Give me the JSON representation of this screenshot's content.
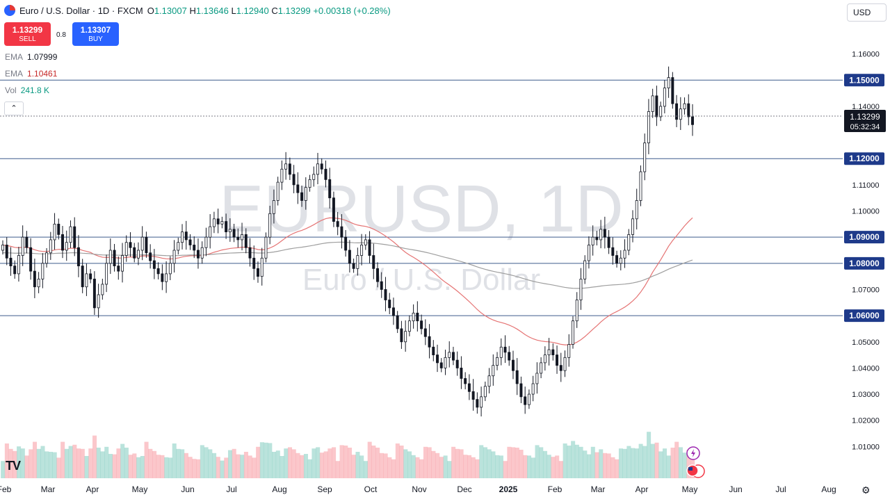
{
  "header": {
    "title": "Euro / U.S. Dollar · 1D · FXCM",
    "open_label": "O",
    "open": "1.13007",
    "high_label": "H",
    "high": "1.13646",
    "low_label": "L",
    "low": "1.12940",
    "close_label": "C",
    "close": "1.13299",
    "change": "+0.00318 (+0.28%)"
  },
  "trade": {
    "sell_price": "1.13299",
    "sell_label": "SELL",
    "spread": "0.8",
    "buy_price": "1.13307",
    "buy_label": "BUY"
  },
  "indicators": [
    {
      "name": "EMA",
      "value": "1.07999"
    },
    {
      "name": "EMA",
      "value": "1.10461"
    },
    {
      "name": "Vol",
      "value": "241.8 K"
    }
  ],
  "collapse_glyph": "⌃",
  "currency_select": "USD",
  "logo_text": "TV",
  "settings_icon": "gear-icon",
  "colors": {
    "up": "#089981",
    "down": "#f23645",
    "ema50": "#e57373",
    "ema200": "#9e9e9e",
    "hline": "#3d5a8c",
    "accent": "#2962ff"
  },
  "chart_data": {
    "type": "candlestick",
    "symbol": "EURUSD",
    "timeframe": "1D",
    "watermark_main": "EURUSD, 1D",
    "watermark_sub": "Euro / U.S. Dollar",
    "ylim": [
      1.0,
      1.17
    ],
    "y_ticks": [
      "1.16000",
      "1.14000",
      "1.11000",
      "1.10000",
      "1.07000",
      "1.05000",
      "1.04000",
      "1.03000",
      "1.02000",
      "1.01000"
    ],
    "levels": [
      "1.15000",
      "1.12000",
      "1.09000",
      "1.08000",
      "1.06000"
    ],
    "current_price": "1.13299",
    "countdown": "05:32:34",
    "x_ticks": [
      "Feb",
      "Mar",
      "Apr",
      "May",
      "Jun",
      "Jul",
      "Aug",
      "Sep",
      "Oct",
      "Nov",
      "Dec",
      "2025",
      "Feb",
      "Mar",
      "Apr",
      "May",
      "Jun",
      "Jul",
      "Aug"
    ],
    "closes": [
      1.087,
      1.082,
      1.079,
      1.076,
      1.083,
      1.09,
      1.086,
      1.077,
      1.071,
      1.074,
      1.08,
      1.084,
      1.089,
      1.095,
      1.091,
      1.085,
      1.088,
      1.094,
      1.086,
      1.079,
      1.071,
      1.076,
      1.074,
      1.063,
      1.068,
      1.072,
      1.08,
      1.085,
      1.079,
      1.077,
      1.083,
      1.088,
      1.086,
      1.082,
      1.085,
      1.09,
      1.084,
      1.081,
      1.078,
      1.076,
      1.073,
      1.076,
      1.08,
      1.085,
      1.088,
      1.092,
      1.089,
      1.087,
      1.085,
      1.082,
      1.086,
      1.09,
      1.094,
      1.097,
      1.095,
      1.096,
      1.092,
      1.093,
      1.09,
      1.089,
      1.091,
      1.086,
      1.082,
      1.078,
      1.075,
      1.082,
      1.09,
      1.099,
      1.104,
      1.111,
      1.116,
      1.118,
      1.114,
      1.11,
      1.107,
      1.104,
      1.109,
      1.112,
      1.114,
      1.118,
      1.116,
      1.112,
      1.105,
      1.096,
      1.094,
      1.09,
      1.085,
      1.08,
      1.078,
      1.083,
      1.087,
      1.089,
      1.083,
      1.078,
      1.073,
      1.07,
      1.066,
      1.063,
      1.06,
      1.055,
      1.05,
      1.054,
      1.058,
      1.061,
      1.058,
      1.055,
      1.052,
      1.048,
      1.045,
      1.042,
      1.04,
      1.044,
      1.046,
      1.043,
      1.04,
      1.036,
      1.034,
      1.031,
      1.028,
      1.025,
      1.029,
      1.033,
      1.037,
      1.041,
      1.044,
      1.048,
      1.046,
      1.043,
      1.039,
      1.034,
      1.029,
      1.026,
      1.03,
      1.034,
      1.038,
      1.042,
      1.045,
      1.047,
      1.045,
      1.041,
      1.039,
      1.044,
      1.049,
      1.058,
      1.066,
      1.074,
      1.081,
      1.087,
      1.09,
      1.089,
      1.093,
      1.09,
      1.086,
      1.083,
      1.08,
      1.082,
      1.085,
      1.091,
      1.097,
      1.104,
      1.115,
      1.126,
      1.138,
      1.144,
      1.136,
      1.14,
      1.147,
      1.151,
      1.141,
      1.135,
      1.139,
      1.141,
      1.136,
      1.133
    ],
    "volume_range": [
      0,
      100
    ]
  }
}
